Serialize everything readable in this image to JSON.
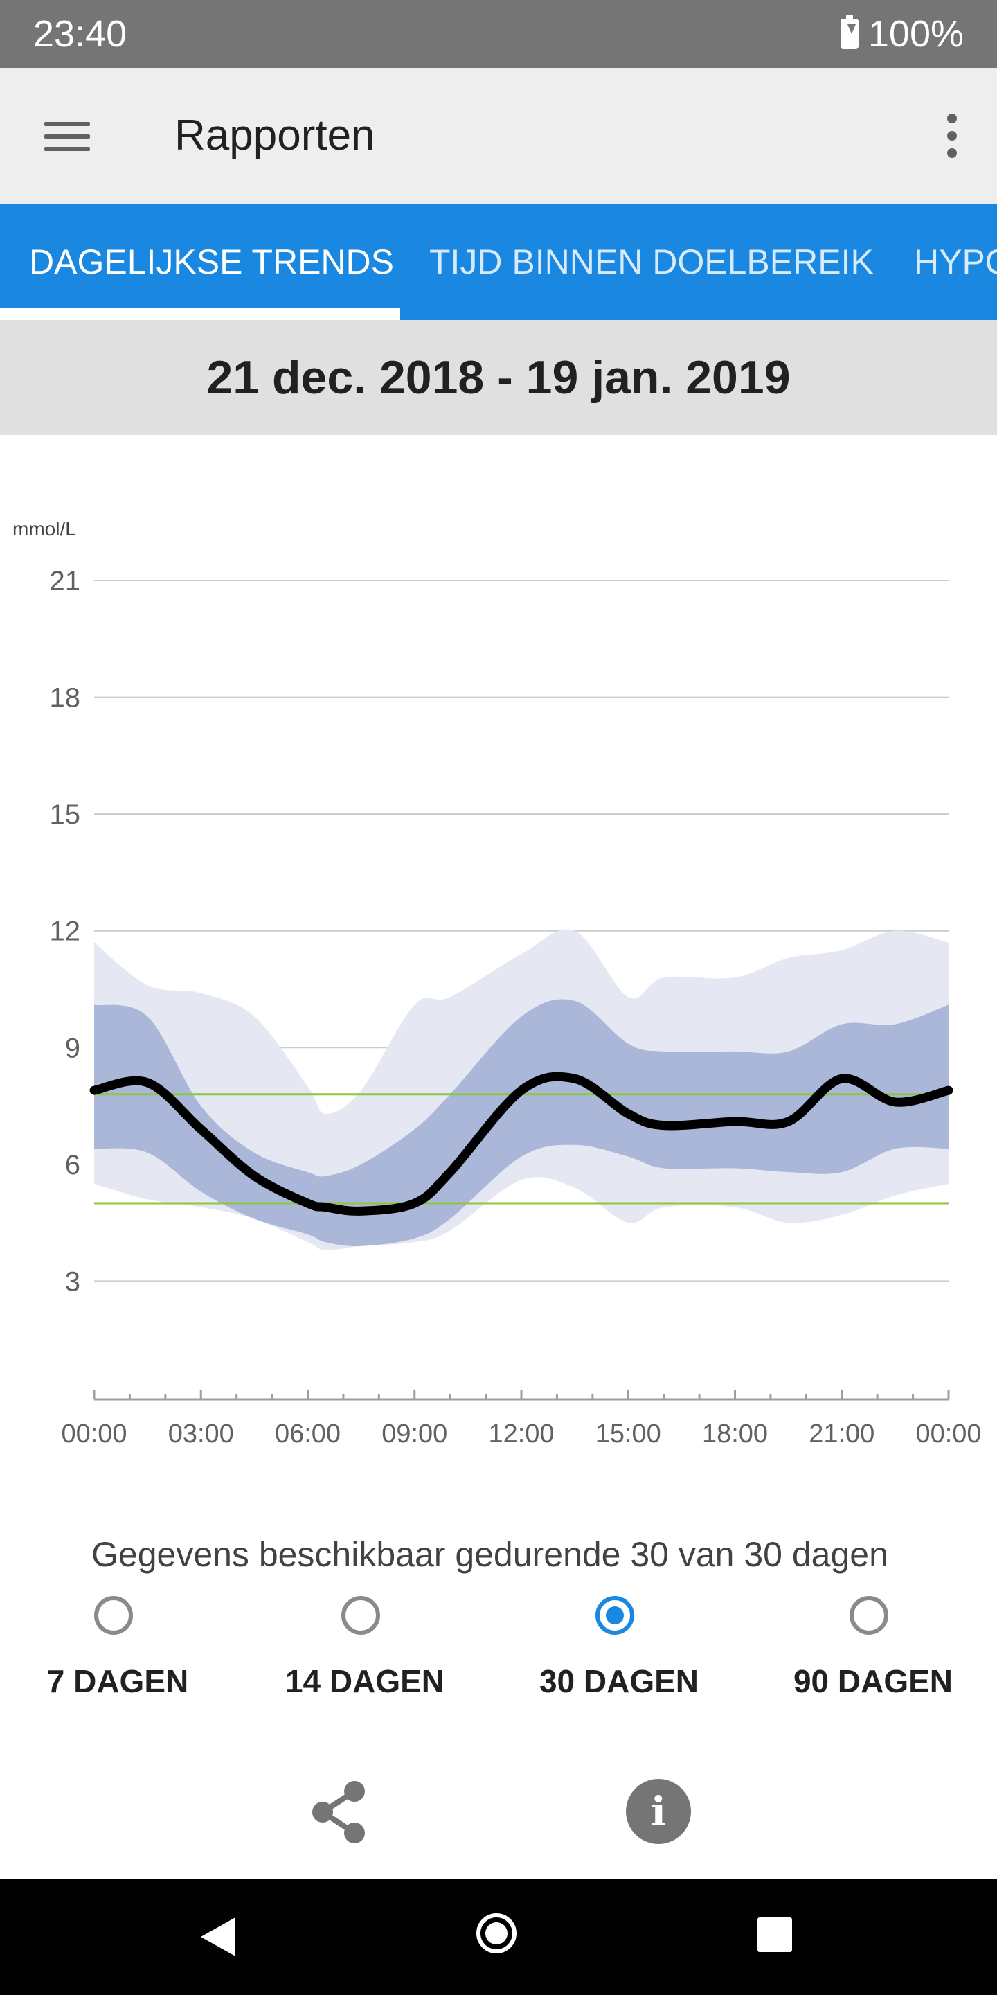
{
  "status_bar": {
    "time": "23:40",
    "battery": "100%"
  },
  "app_bar": {
    "title": "Rapporten",
    "menu_icon": "hamburger-menu-icon",
    "overflow_icon": "more-vert-icon"
  },
  "tabs": [
    {
      "label": "DAGELIJKSE TRENDS",
      "selected": true
    },
    {
      "label": "TIJD BINNEN DOELBEREIK",
      "selected": false
    },
    {
      "label": "HYPO",
      "selected": false
    }
  ],
  "date_range": "21 dec. 2018 - 19 jan. 2019",
  "chart_data": {
    "type": "area",
    "ylabel": "mmol/L",
    "ylim": [
      0,
      21
    ],
    "yticks": [
      "21",
      "18",
      "15",
      "12",
      "9",
      "6",
      "3"
    ],
    "xticks": [
      "00:00",
      "03:00",
      "06:00",
      "09:00",
      "12:00",
      "15:00",
      "18:00",
      "21:00",
      "00:00"
    ],
    "x_hours": [
      0,
      1.5,
      3,
      4.5,
      6,
      6.5,
      7.5,
      9,
      10,
      12,
      13.5,
      15,
      16,
      18,
      19.5,
      21,
      22.5,
      24
    ],
    "target_range": [
      5.0,
      7.8
    ],
    "target_color": "#8dc63f",
    "median": [
      7.9,
      8.1,
      6.9,
      5.7,
      5.0,
      4.9,
      4.8,
      5.0,
      5.8,
      7.9,
      8.2,
      7.3,
      7.0,
      7.1,
      7.1,
      8.2,
      7.6,
      7.9
    ],
    "p25_p75": {
      "low": [
        6.4,
        6.3,
        5.3,
        4.6,
        4.2,
        4.0,
        3.9,
        4.1,
        4.6,
        6.2,
        6.5,
        6.2,
        5.9,
        5.9,
        5.8,
        5.8,
        6.4,
        6.4
      ],
      "high": [
        10.1,
        9.8,
        7.5,
        6.3,
        5.8,
        5.7,
        6.0,
        6.9,
        7.8,
        9.8,
        10.2,
        9.1,
        8.9,
        8.9,
        8.9,
        9.6,
        9.6,
        10.1
      ]
    },
    "p10_p90": {
      "low": [
        5.5,
        5.1,
        4.9,
        4.6,
        4.0,
        3.8,
        3.9,
        4.0,
        4.3,
        5.6,
        5.4,
        4.5,
        4.9,
        4.9,
        4.5,
        4.7,
        5.2,
        5.5
      ],
      "high": [
        11.7,
        10.6,
        10.4,
        9.8,
        8.0,
        7.3,
        7.9,
        10.1,
        10.3,
        11.4,
        12.0,
        10.3,
        10.8,
        10.8,
        11.3,
        11.5,
        12.0,
        11.7
      ]
    },
    "colors": {
      "median": "#000000",
      "inner_band": "#abb7d8",
      "outer_band": "#e5e8f3",
      "grid": "#cccccc"
    }
  },
  "availability_text": "Gegevens beschikbaar gedurende 30 van 30 dagen",
  "range_options": [
    {
      "label": "7 DAGEN",
      "selected": false
    },
    {
      "label": "14 DAGEN",
      "selected": false
    },
    {
      "label": "30 DAGEN",
      "selected": true
    },
    {
      "label": "90 DAGEN",
      "selected": false
    }
  ],
  "actions": {
    "share_icon": "share-icon",
    "info_icon": "info-icon",
    "info_glyph": "i"
  },
  "nav_bar": {
    "back_icon": "back-triangle-icon",
    "home_icon": "home-circle-icon",
    "recents_icon": "recents-square-icon"
  },
  "accent_color": "#1a88e1"
}
